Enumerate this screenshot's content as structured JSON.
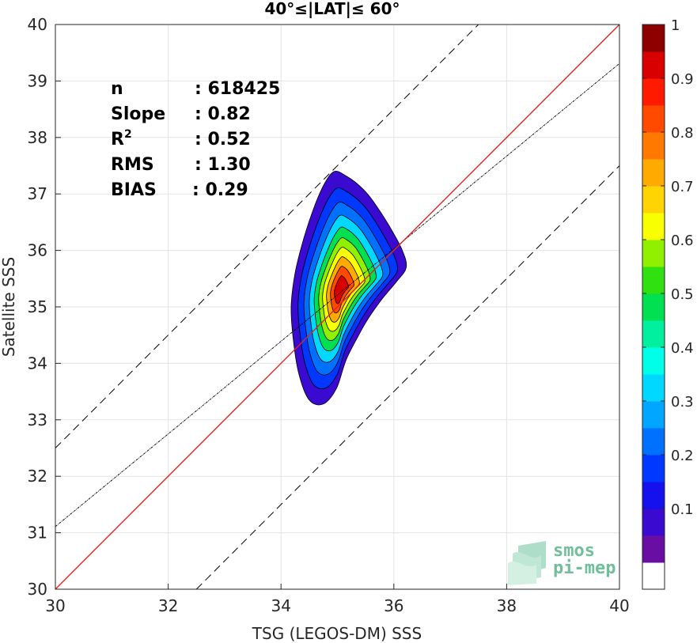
{
  "chart_data": {
    "type": "density_contour",
    "title": "40°≤|LAT|≤ 60°",
    "xlabel": "TSG (LEGOS-DM) SSS",
    "ylabel": "Satellite SSS",
    "xlim": [
      30,
      40
    ],
    "ylim": [
      30,
      40
    ],
    "xticks": [
      "30",
      "32",
      "34",
      "36",
      "38",
      "40"
    ],
    "yticks": [
      "30",
      "31",
      "32",
      "33",
      "34",
      "35",
      "36",
      "37",
      "38",
      "39",
      "40"
    ],
    "grid": true,
    "stats": [
      {
        "label": "n",
        "value": ": 618425"
      },
      {
        "label": "Slope",
        "value": ": 0.82"
      },
      {
        "label": "R2",
        "value": ": 0.52"
      },
      {
        "label": "RMS",
        "value": ": 1.30"
      },
      {
        "label": "BIAS",
        "value": ": 0.29"
      }
    ],
    "reference_lines": {
      "one_to_one": {
        "x": [
          30,
          40
        ],
        "y": [
          30,
          40
        ],
        "color": "#e3241f"
      },
      "regression": {
        "slope": 0.82,
        "intercept": 6.51,
        "color": "#000000"
      },
      "plus_minus_offset": {
        "offset": 2.5,
        "color": "#000000"
      }
    },
    "density_peak": {
      "x": 35.05,
      "y": 35.3
    },
    "contour_levels": [
      0.05,
      0.1,
      0.2,
      0.3,
      0.4,
      0.5,
      0.6,
      0.7,
      0.8,
      0.9
    ],
    "colorbar": {
      "ticks": [
        "0.1",
        "0.2",
        "0.3",
        "0.4",
        "0.5",
        "0.6",
        "0.7",
        "0.8",
        "0.9",
        "1"
      ],
      "colors": [
        "#ffffff",
        "#6a0da3",
        "#3a0ad0",
        "#1410ee",
        "#0038ff",
        "#0070ff",
        "#00a6ff",
        "#00d8ff",
        "#00ffe8",
        "#00f0a0",
        "#00e050",
        "#30e010",
        "#90f000",
        "#f8ff00",
        "#ffd400",
        "#ffaa00",
        "#ff7800",
        "#ff4a00",
        "#ff1a00",
        "#d80000",
        "#8c0000"
      ]
    }
  },
  "watermark": {
    "line1": "smos",
    "line2": "pi-mep"
  }
}
